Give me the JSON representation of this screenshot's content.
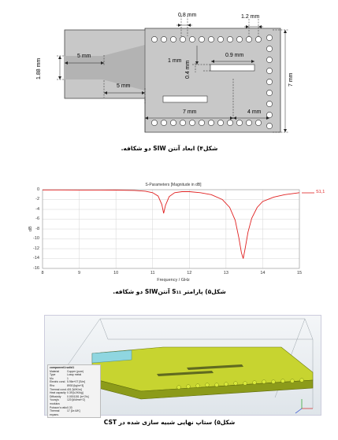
{
  "figure4": {
    "caption": "شکل۴) ابعاد آنتن SIW دو شکافه.",
    "dims": {
      "via_spacing": "0.8 mm",
      "via_pitch": "1.2 mm",
      "feed_length": "5 mm",
      "feed_width": "1.88 mm",
      "taper_length": "5 mm",
      "slot_offset": "1 mm",
      "slot_width": "0.4 mm",
      "slot_length": "0.9 mm",
      "slot2_pos": "7 mm",
      "slot_to_end": "4 mm",
      "board_width": "7 mm"
    }
  },
  "figure5": {
    "caption": "شکل۵) پارامتر S₁₁ آنتنSIW دو شکافه.",
    "chart_data": {
      "type": "line",
      "title": "S-Parameters [Magnitude in dB]",
      "xlabel": "Frequency / GHz",
      "ylabel": "dB",
      "xlim": [
        8,
        15
      ],
      "ylim": [
        -16,
        0
      ],
      "x_ticks": [
        "8",
        "9",
        "10",
        "11",
        "12",
        "13",
        "14",
        "15"
      ],
      "y_ticks": [
        "0",
        "-2",
        "-4",
        "-6",
        "-8",
        "-10",
        "-12",
        "-14",
        "-16"
      ],
      "grid": true,
      "legend_position": "top-right",
      "series": [
        {
          "name": "S1,1",
          "color": "#e02020",
          "x": [
            8,
            8.5,
            9,
            9.5,
            10,
            10.5,
            10.8,
            11.0,
            11.15,
            11.25,
            11.3,
            11.35,
            11.45,
            11.6,
            11.8,
            12.0,
            12.3,
            12.6,
            12.9,
            13.1,
            13.25,
            13.35,
            13.42,
            13.47,
            13.52,
            13.6,
            13.7,
            13.85,
            14.0,
            14.3,
            14.6,
            15
          ],
          "y": [
            -0.05,
            -0.05,
            -0.06,
            -0.07,
            -0.08,
            -0.15,
            -0.3,
            -0.6,
            -1.3,
            -3.0,
            -4.8,
            -3.2,
            -1.4,
            -0.6,
            -0.4,
            -0.4,
            -0.6,
            -1.0,
            -2.0,
            -3.6,
            -6.2,
            -9.8,
            -12.8,
            -14.0,
            -12.0,
            -8.6,
            -5.8,
            -3.6,
            -2.4,
            -1.5,
            -1.0,
            -0.6
          ]
        }
      ]
    }
  },
  "figure6": {
    "caption": "شکل۵) ستاپ نهایی شبیه سازی شده در CST",
    "material_panel": {
      "title": "component1:solid1",
      "rows": [
        [
          "Material",
          "Copper (pure)"
        ],
        [
          "Type",
          "Lossy metal"
        ],
        [
          "Mu",
          "1"
        ],
        [
          "Electric cond.",
          "5.96e+07 [S/m]"
        ],
        [
          "Rho",
          "8930 [kg/m^3]"
        ],
        [
          "Thermal cond.",
          "401 [W/K/m]"
        ],
        [
          "Heat capacity",
          "0.39 [kJ/K/kg]"
        ],
        [
          "Diffusivity",
          "0.0001151 [m^2/s]"
        ],
        [
          "Young's modulus",
          "120 [kN/mm^2]"
        ],
        [
          "Poisson's ratio",
          "0.33"
        ],
        [
          "Thermal expans.",
          "17 [1e-6/K]"
        ]
      ]
    }
  }
}
